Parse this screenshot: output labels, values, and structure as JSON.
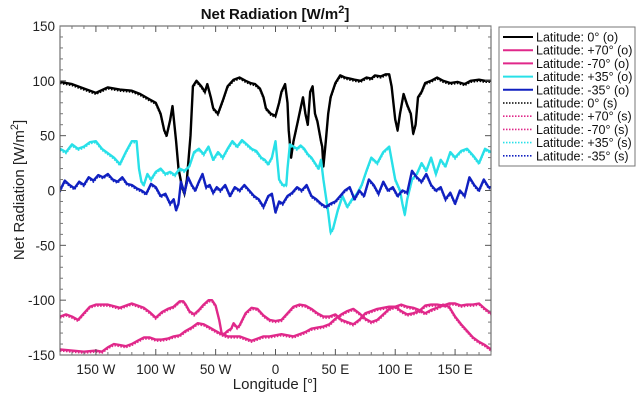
{
  "chart_data": {
    "type": "line",
    "title": "Net Radiation [W/m",
    "title_superscript": "2",
    "title_suffix": "]",
    "xlabel": "Longitude [°]",
    "ylabel": "Net Radiation [W/m",
    "ylabel_superscript": "2",
    "ylabel_suffix": "]",
    "xlim": [
      -180,
      180
    ],
    "ylim": [
      -150,
      150
    ],
    "grid": false,
    "legend_position": "outside-right",
    "x_ticks": [
      {
        "value": -150,
        "label": "150 W"
      },
      {
        "value": -100,
        "label": "100 W"
      },
      {
        "value": -50,
        "label": "50 W"
      },
      {
        "value": 0,
        "label": "0"
      },
      {
        "value": 50,
        "label": "50 E"
      },
      {
        "value": 100,
        "label": "100 E"
      },
      {
        "value": 150,
        "label": "150 E"
      }
    ],
    "y_ticks": [
      {
        "value": 150,
        "label": "150"
      },
      {
        "value": 100,
        "label": "100"
      },
      {
        "value": 50,
        "label": "50"
      },
      {
        "value": 0,
        "label": "0"
      },
      {
        "value": -50,
        "label": "-50"
      },
      {
        "value": -100,
        "label": "-100"
      },
      {
        "value": -150,
        "label": "-150"
      }
    ],
    "series": [
      {
        "name": "Latitude: 0° (o)",
        "color": "#000000",
        "style": "solid",
        "x": [
          -180,
          -170,
          -160,
          -150,
          -140,
          -130,
          -120,
          -113,
          -105,
          -100,
          -96,
          -93,
          -91,
          -88,
          -86,
          -83,
          -81,
          -78,
          -76,
          -74,
          -71,
          -69,
          -66,
          -62,
          -59,
          -57,
          -54,
          -52,
          -48,
          -44,
          -40,
          -35,
          -30,
          -25,
          -21,
          -17,
          -13,
          -10,
          -8,
          -4,
          0,
          3,
          5,
          8,
          10,
          11,
          13,
          15,
          18,
          21,
          23,
          25,
          27,
          29,
          31,
          33,
          35,
          38,
          39,
          40,
          42,
          44,
          46,
          50,
          54,
          58,
          62,
          66,
          71,
          76,
          80,
          83,
          88,
          92,
          95,
          97,
          100,
          102,
          104,
          107,
          110,
          113,
          115,
          117,
          119,
          122,
          125,
          130,
          135,
          140,
          146,
          152,
          158,
          163,
          170,
          175,
          180
        ],
        "y": [
          99,
          97,
          93,
          89,
          94,
          92,
          91,
          88,
          83,
          80,
          70,
          55,
          50,
          64,
          77,
          45,
          20,
          3,
          -3,
          10,
          50,
          95,
          100,
          95,
          90,
          97,
          85,
          75,
          70,
          82,
          95,
          101,
          103,
          100,
          98,
          97,
          93,
          85,
          75,
          70,
          68,
          80,
          90,
          97,
          80,
          55,
          30,
          45,
          60,
          75,
          85,
          70,
          60,
          90,
          95,
          70,
          63,
          45,
          40,
          22,
          45,
          70,
          85,
          98,
          105,
          103,
          102,
          101,
          100,
          103,
          102,
          105,
          104,
          106,
          106,
          95,
          65,
          55,
          70,
          88,
          78,
          70,
          52,
          60,
          85,
          90,
          98,
          100,
          103,
          100,
          98,
          99,
          97,
          100,
          101,
          100,
          100
        ]
      },
      {
        "name": "Latitude: +70° (o)",
        "color": "#e0288a",
        "style": "solid",
        "x": [
          -180,
          -175,
          -170,
          -165,
          -160,
          -155,
          -150,
          -140,
          -130,
          -125,
          -120,
          -115,
          -110,
          -105,
          -100,
          -98,
          -95,
          -90,
          -85,
          -80,
          -77,
          -75,
          -72,
          -68,
          -64,
          -60,
          -56,
          -53,
          -50,
          -47,
          -45,
          -43,
          -40,
          -37,
          -35,
          -32,
          -30,
          -25,
          -20,
          -15,
          -10,
          -5,
          0,
          5,
          10,
          15,
          20,
          25,
          30,
          35,
          40,
          45,
          50,
          55,
          60,
          65,
          70,
          75,
          80,
          85,
          90,
          95,
          100,
          105,
          110,
          115,
          120,
          125,
          130,
          135,
          140,
          145,
          150,
          155,
          160,
          165,
          170,
          175,
          180
        ],
        "y": [
          -115,
          -113,
          -115,
          -118,
          -112,
          -106,
          -104,
          -104,
          -107,
          -105,
          -103,
          -105,
          -107,
          -111,
          -116,
          -114,
          -111,
          -108,
          -106,
          -101,
          -101,
          -104,
          -110,
          -113,
          -109,
          -104,
          -100,
          -100,
          -105,
          -118,
          -130,
          -131,
          -128,
          -126,
          -121,
          -125,
          -123,
          -112,
          -107,
          -108,
          -114,
          -118,
          -119,
          -118,
          -112,
          -106,
          -104,
          -105,
          -108,
          -112,
          -115,
          -115,
          -113,
          -118,
          -120,
          -122,
          -118,
          -112,
          -110,
          -108,
          -107,
          -106,
          -106,
          -110,
          -113,
          -112,
          -110,
          -105,
          -104,
          -104,
          -105,
          -103,
          -103,
          -105,
          -104,
          -104,
          -103,
          -108,
          -112
        ]
      },
      {
        "name": "Latitude: -70° (o)",
        "color": "#e0288a",
        "style": "solid",
        "x": [
          -180,
          -170,
          -160,
          -150,
          -145,
          -140,
          -135,
          -130,
          -125,
          -120,
          -115,
          -110,
          -105,
          -100,
          -95,
          -90,
          -85,
          -80,
          -75,
          -70,
          -65,
          -60,
          -55,
          -50,
          -45,
          -40,
          -35,
          -30,
          -25,
          -20,
          -15,
          -10,
          -5,
          0,
          5,
          10,
          15,
          20,
          25,
          30,
          35,
          40,
          45,
          50,
          55,
          60,
          65,
          70,
          75,
          80,
          85,
          90,
          95,
          100,
          105,
          110,
          115,
          120,
          125,
          130,
          135,
          140,
          145,
          150,
          155,
          160,
          165,
          170,
          175,
          180
        ],
        "y": [
          -145,
          -146,
          -147,
          -146,
          -147,
          -143,
          -140,
          -141,
          -142,
          -140,
          -137,
          -134,
          -134,
          -136,
          -136,
          -135,
          -133,
          -132,
          -128,
          -125,
          -121,
          -122,
          -125,
          -128,
          -131,
          -133,
          -133,
          -133,
          -135,
          -137,
          -135,
          -133,
          -133,
          -132,
          -131,
          -132,
          -133,
          -131,
          -129,
          -126,
          -125,
          -124,
          -122,
          -117,
          -113,
          -110,
          -108,
          -112,
          -117,
          -120,
          -118,
          -113,
          -108,
          -106,
          -104,
          -106,
          -107,
          -109,
          -112,
          -109,
          -107,
          -104,
          -106,
          -115,
          -122,
          -128,
          -134,
          -138,
          -141,
          -145
        ]
      },
      {
        "name": "Latitude: +35° (o)",
        "color": "#28e0e8",
        "style": "solid",
        "x": [
          -180,
          -175,
          -170,
          -165,
          -160,
          -155,
          -150,
          -145,
          -140,
          -135,
          -130,
          -125,
          -120,
          -116,
          -114,
          -112,
          -110,
          -107,
          -104,
          -100,
          -96,
          -92,
          -88,
          -84,
          -80,
          -76,
          -72,
          -68,
          -64,
          -60,
          -56,
          -52,
          -48,
          -44,
          -40,
          -36,
          -32,
          -28,
          -24,
          -20,
          -16,
          -12,
          -9,
          -6,
          -3,
          0,
          3,
          6,
          9,
          10,
          12,
          15,
          18,
          21,
          24,
          27,
          30,
          33,
          36,
          38,
          40,
          42,
          44,
          46,
          48,
          52,
          56,
          60,
          64,
          68,
          72,
          76,
          80,
          85,
          90,
          95,
          100,
          104,
          106,
          108,
          110,
          114,
          118,
          122,
          126,
          130,
          134,
          138,
          142,
          146,
          150,
          155,
          160,
          165,
          170,
          175,
          180
        ],
        "y": [
          38,
          35,
          42,
          38,
          40,
          44,
          45,
          38,
          34,
          30,
          24,
          35,
          45,
          45,
          20,
          8,
          5,
          15,
          10,
          17,
          20,
          15,
          17,
          14,
          20,
          18,
          22,
          35,
          38,
          33,
          40,
          28,
          35,
          30,
          38,
          45,
          40,
          46,
          42,
          38,
          36,
          30,
          28,
          24,
          30,
          45,
          10,
          5,
          5,
          20,
          42,
          40,
          38,
          41,
          38,
          33,
          30,
          25,
          20,
          28,
          10,
          -5,
          -20,
          -38,
          -35,
          -18,
          -5,
          -15,
          -8,
          -3,
          5,
          18,
          30,
          25,
          35,
          40,
          10,
          0,
          -12,
          -22,
          -8,
          10,
          15,
          25,
          18,
          30,
          15,
          28,
          22,
          35,
          30,
          36,
          38,
          32,
          25,
          38,
          35
        ]
      },
      {
        "name": "Latitude: -35° (o)",
        "color": "#1020c0",
        "style": "solid",
        "x": [
          -180,
          -176,
          -172,
          -168,
          -164,
          -160,
          -156,
          -152,
          -148,
          -144,
          -140,
          -136,
          -132,
          -128,
          -124,
          -120,
          -116,
          -112,
          -108,
          -104,
          -100,
          -96,
          -92,
          -88,
          -85,
          -83,
          -81,
          -79,
          -76,
          -73,
          -70,
          -67,
          -64,
          -61,
          -58,
          -55,
          -52,
          -49,
          -46,
          -42,
          -38,
          -34,
          -30,
          -26,
          -22,
          -18,
          -14,
          -10,
          -6,
          -3,
          0,
          3,
          6,
          10,
          14,
          18,
          22,
          26,
          30,
          34,
          38,
          42,
          46,
          50,
          54,
          58,
          62,
          66,
          70,
          74,
          78,
          82,
          86,
          90,
          94,
          98,
          102,
          106,
          110,
          114,
          118,
          122,
          126,
          130,
          134,
          138,
          142,
          146,
          150,
          154,
          158,
          162,
          166,
          170,
          174,
          178,
          180
        ],
        "y": [
          0,
          9,
          5,
          2,
          8,
          5,
          12,
          9,
          14,
          12,
          15,
          10,
          8,
          12,
          6,
          5,
          2,
          0,
          -3,
          6,
          3,
          -5,
          -3,
          -12,
          -8,
          -18,
          -12,
          8,
          -2,
          12,
          5,
          0,
          8,
          15,
          3,
          5,
          -2,
          3,
          0,
          5,
          -5,
          3,
          0,
          5,
          0,
          -5,
          -8,
          -15,
          -5,
          -3,
          -20,
          -10,
          -12,
          -5,
          -2,
          3,
          0,
          5,
          -5,
          -8,
          -12,
          -15,
          -12,
          -10,
          -5,
          0,
          3,
          -8,
          0,
          -5,
          10,
          5,
          -3,
          8,
          0,
          3,
          -5,
          0,
          -2,
          18,
          12,
          8,
          15,
          5,
          0,
          3,
          -8,
          -2,
          -12,
          0,
          -5,
          12,
          5,
          0,
          10,
          3,
          3
        ]
      }
    ],
    "legend": [
      {
        "label": "Latitude: 0° (o)",
        "color": "#000000",
        "style": "solid"
      },
      {
        "label": "Latitude: +70° (o)",
        "color": "#e0288a",
        "style": "solid"
      },
      {
        "label": "Latitude: -70° (o)",
        "color": "#e0288a",
        "style": "solid"
      },
      {
        "label": "Latitude: +35° (o)",
        "color": "#28e0e8",
        "style": "solid"
      },
      {
        "label": "Latitude: -35° (o)",
        "color": "#1020c0",
        "style": "solid"
      },
      {
        "label": "Latitude: 0° (s)",
        "color": "#000000",
        "style": "dotted"
      },
      {
        "label": "Latitude: +70° (s)",
        "color": "#e0288a",
        "style": "dotted"
      },
      {
        "label": "Latitude: -70° (s)",
        "color": "#e0288a",
        "style": "dotted"
      },
      {
        "label": "Latitude: +35° (s)",
        "color": "#28e0e8",
        "style": "dotted"
      },
      {
        "label": "Latitude: -35° (s)",
        "color": "#1020c0",
        "style": "dotted"
      }
    ]
  }
}
